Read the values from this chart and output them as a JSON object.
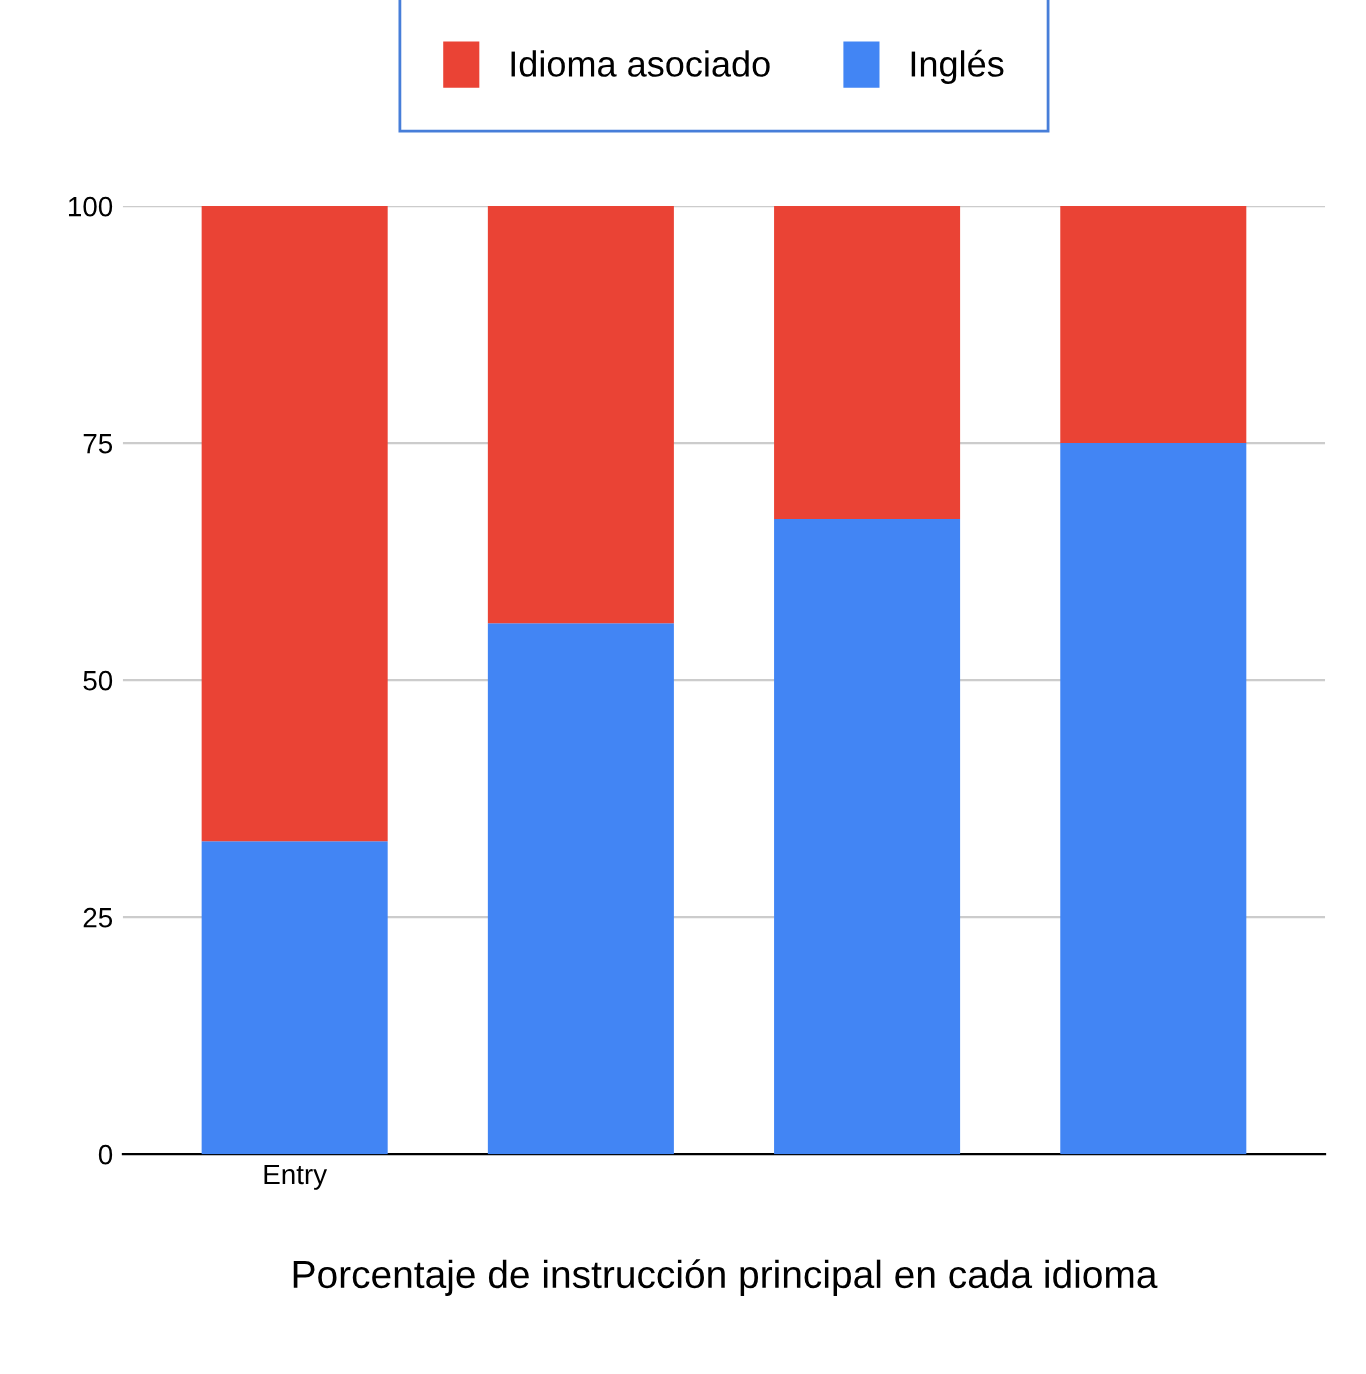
{
  "chart_data": {
    "type": "bar",
    "stacked": true,
    "xlabel": "Porcentaje de instrucción principal en cada idioma",
    "categories": [
      "Entry",
      null,
      null,
      null
    ],
    "series": [
      {
        "name": "Inglés",
        "color": "#4285f4",
        "values": [
          33,
          56,
          67,
          75
        ]
      },
      {
        "name": "Idioma asociado",
        "color": "#ea4335",
        "values": [
          67,
          44,
          33,
          25
        ]
      }
    ],
    "ylim": [
      0,
      100
    ],
    "yticks": [
      0,
      25,
      50,
      75,
      100
    ],
    "grid": "y",
    "legend": "top"
  }
}
